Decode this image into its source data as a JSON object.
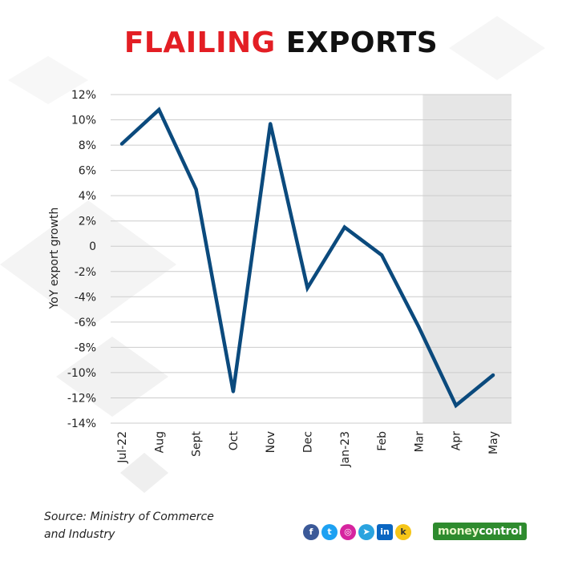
{
  "header": {
    "title_part1": "FLAILING",
    "title_part2": "EXPORTS"
  },
  "chart_data": {
    "type": "line",
    "ylabel": "YoY export growth",
    "xlabel": "",
    "categories": [
      "Jul-22",
      "Aug",
      "Sept",
      "Oct",
      "Nov",
      "Dec",
      "Jan-23",
      "Feb",
      "Mar",
      "Apr",
      "May"
    ],
    "series": [
      {
        "values": [
          8.1,
          10.8,
          4.5,
          -11.5,
          9.7,
          -3.3,
          1.5,
          -0.7,
          -6.4,
          -12.6,
          -10.2
        ],
        "color": "#0b4a7d"
      }
    ],
    "ylim": [
      -14,
      12
    ],
    "y_ticks": [
      12,
      10,
      8,
      6,
      4,
      2,
      0,
      -2,
      -4,
      -6,
      -8,
      -10,
      -12,
      -14
    ],
    "y_tick_labels": [
      "12%",
      "10%",
      "8%",
      "6%",
      "4%",
      "2%",
      "0",
      "-2%",
      "-4%",
      "-6%",
      "-8%",
      "-10%",
      "-12%",
      "-14%"
    ],
    "highlight_range": [
      "Mar",
      "May"
    ],
    "highlight_color": "#e6e6e6",
    "grid": true,
    "legend": "none"
  },
  "footer": {
    "source_line1": "Source: Ministry of Commerce",
    "source_line2": "and Industry",
    "social_icons": [
      "facebook-icon",
      "twitter-icon",
      "instagram-icon",
      "telegram-icon",
      "linkedin-icon",
      "koo-icon"
    ],
    "brand_part1": "money",
    "brand_part2": "control"
  }
}
